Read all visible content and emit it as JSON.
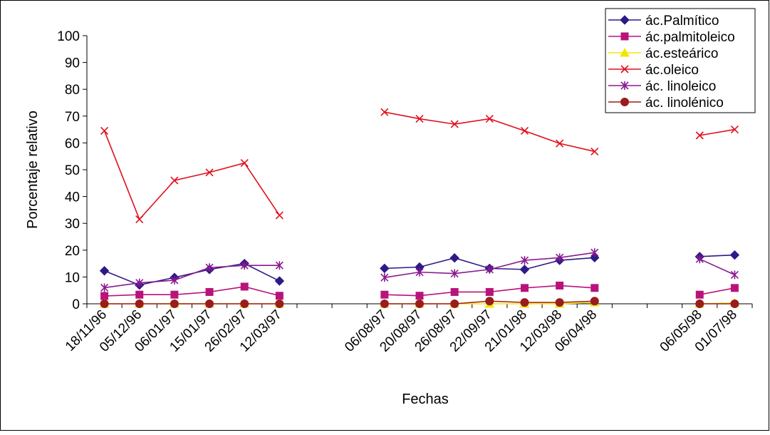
{
  "chart_data": {
    "type": "line",
    "title": "",
    "xlabel": "Fechas",
    "ylabel": "Porcentaje relativo",
    "ylim": [
      0,
      100
    ],
    "yticks": [
      "0",
      "10",
      "20",
      "30",
      "40",
      "50",
      "60",
      "70",
      "80",
      "90",
      "100"
    ],
    "grid": false,
    "legend_position": "top-right",
    "categories": [
      "18/11/96",
      "05/12/96",
      "06/01/97",
      "15/01/97",
      "26/02/97",
      "12/03/97",
      "",
      "",
      "06/08/97",
      "20/08/97",
      "26/08/97",
      "22/09/97",
      "21/01/98",
      "12/03/98",
      "06/04/98",
      "",
      "",
      "06/05/98",
      "01/07/98"
    ],
    "series": [
      {
        "name": " ác.Palmítico",
        "color": "#2e1a87",
        "marker": "diamond",
        "values": [
          12.3,
          7,
          9.8,
          12.8,
          15,
          8.5,
          null,
          null,
          13.2,
          13.7,
          17.1,
          13.2,
          12.8,
          16.2,
          17.2,
          null,
          null,
          17.6,
          18.2
        ]
      },
      {
        "name": "ác.palmitoleico",
        "color": "#b8137a",
        "marker": "square",
        "values": [
          2.9,
          3.4,
          3.4,
          4.4,
          6.4,
          3,
          null,
          null,
          3.4,
          3,
          4.4,
          4.4,
          5.9,
          6.8,
          5.9,
          null,
          null,
          3.4,
          5.9
        ]
      },
      {
        "name": "ác.esteárico",
        "color": "#f2e600",
        "marker": "triangle",
        "values": [
          0,
          0,
          0,
          0,
          0,
          0,
          null,
          null,
          0,
          0,
          0,
          0,
          0,
          0,
          0.5,
          null,
          null,
          0,
          0.3
        ]
      },
      {
        "name": "ác.oleico",
        "color": "#e0101c",
        "marker": "x",
        "values": [
          64.5,
          31.5,
          46,
          49,
          52.5,
          33,
          null,
          null,
          71.5,
          69,
          67,
          69,
          64.5,
          59.8,
          56.8,
          null,
          null,
          62.8,
          65
        ]
      },
      {
        "name": "ác. linoleico",
        "color": "#8a1a8f",
        "marker": "star",
        "values": [
          6,
          7.8,
          8.8,
          13.5,
          14.3,
          14.3,
          null,
          null,
          9.8,
          11.8,
          11.3,
          12.8,
          16.2,
          17.2,
          19.1,
          null,
          null,
          16.7,
          10.8
        ]
      },
      {
        "name": "ác. linolénico",
        "color": "#9a1c1c",
        "marker": "circle",
        "values": [
          0,
          0,
          0,
          0,
          0,
          0,
          null,
          null,
          0,
          0,
          0,
          1,
          0.5,
          0.5,
          1,
          null,
          null,
          0,
          0
        ]
      }
    ]
  }
}
